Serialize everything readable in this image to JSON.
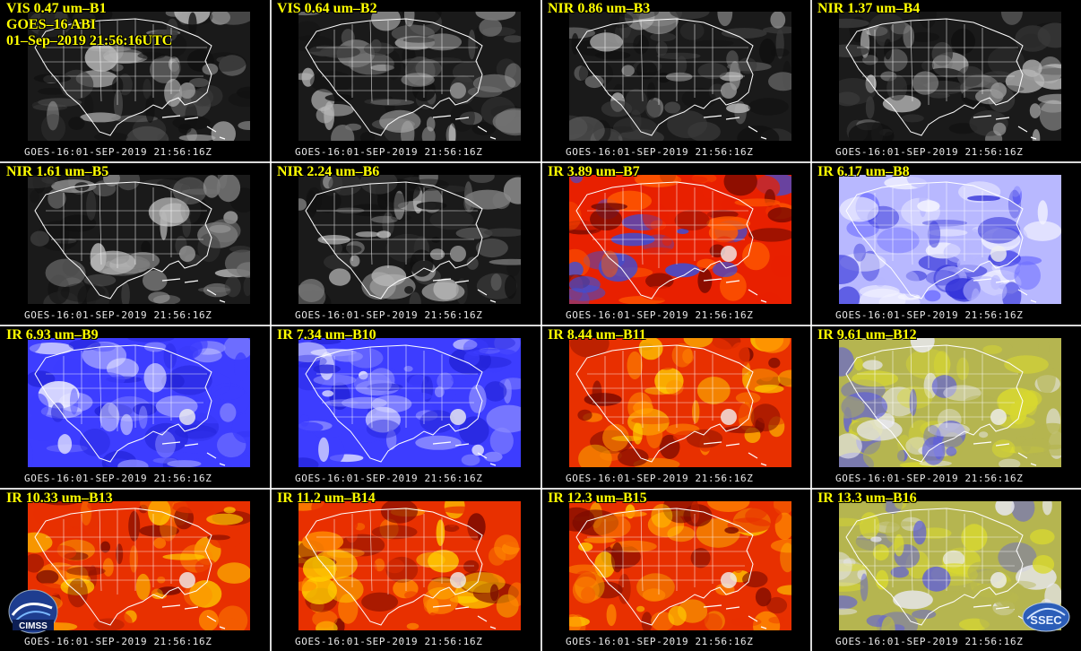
{
  "header": {
    "line2": "GOES–16 ABI",
    "line3": "01–Sep–2019 21:56:16UTC"
  },
  "footer_text": "GOES-16:01-SEP-2019 21:56:16Z",
  "logos": {
    "left": "CIMSS",
    "right": "SSEC"
  },
  "panels": [
    {
      "label": "VIS 0.47 um–B1",
      "scheme": "gray",
      "bright": 0.45
    },
    {
      "label": "VIS 0.64 um–B2",
      "scheme": "gray",
      "bright": 0.35
    },
    {
      "label": "NIR 0.86 um–B3",
      "scheme": "gray",
      "bright": 0.5
    },
    {
      "label": "NIR 1.37 um–B4",
      "scheme": "gray",
      "bright": 0.15
    },
    {
      "label": "NIR 1.61 um–B5",
      "scheme": "gray",
      "bright": 0.3
    },
    {
      "label": "NIR 2.24 um–B6",
      "scheme": "gray",
      "bright": 0.25
    },
    {
      "label": "IR 3.89 um–B7",
      "scheme": "redblue",
      "bright": 0.6
    },
    {
      "label": "IR 6.17 um–B8",
      "scheme": "whiteblue",
      "bright": 0.8
    },
    {
      "label": "IR 6.93 um–B9",
      "scheme": "blue",
      "bright": 0.5
    },
    {
      "label": "IR 7.34 um–B10",
      "scheme": "blue",
      "bright": 0.5
    },
    {
      "label": "IR 8.44 um–B11",
      "scheme": "orange",
      "bright": 0.7
    },
    {
      "label": "IR 9.61 um–B12",
      "scheme": "yellowblue",
      "bright": 0.6
    },
    {
      "label": "IR 10.33 um–B13",
      "scheme": "orange",
      "bright": 0.7
    },
    {
      "label": "IR 11.2 um–B14",
      "scheme": "orange",
      "bright": 0.7
    },
    {
      "label": "IR 12.3 um–B15",
      "scheme": "orange",
      "bright": 0.7
    },
    {
      "label": "IR 13.3 um–B16",
      "scheme": "yellowblue",
      "bright": 0.8
    }
  ],
  "colors": {
    "label": "#ffff00",
    "map_lines": "#ffffff",
    "background": "#000000"
  }
}
